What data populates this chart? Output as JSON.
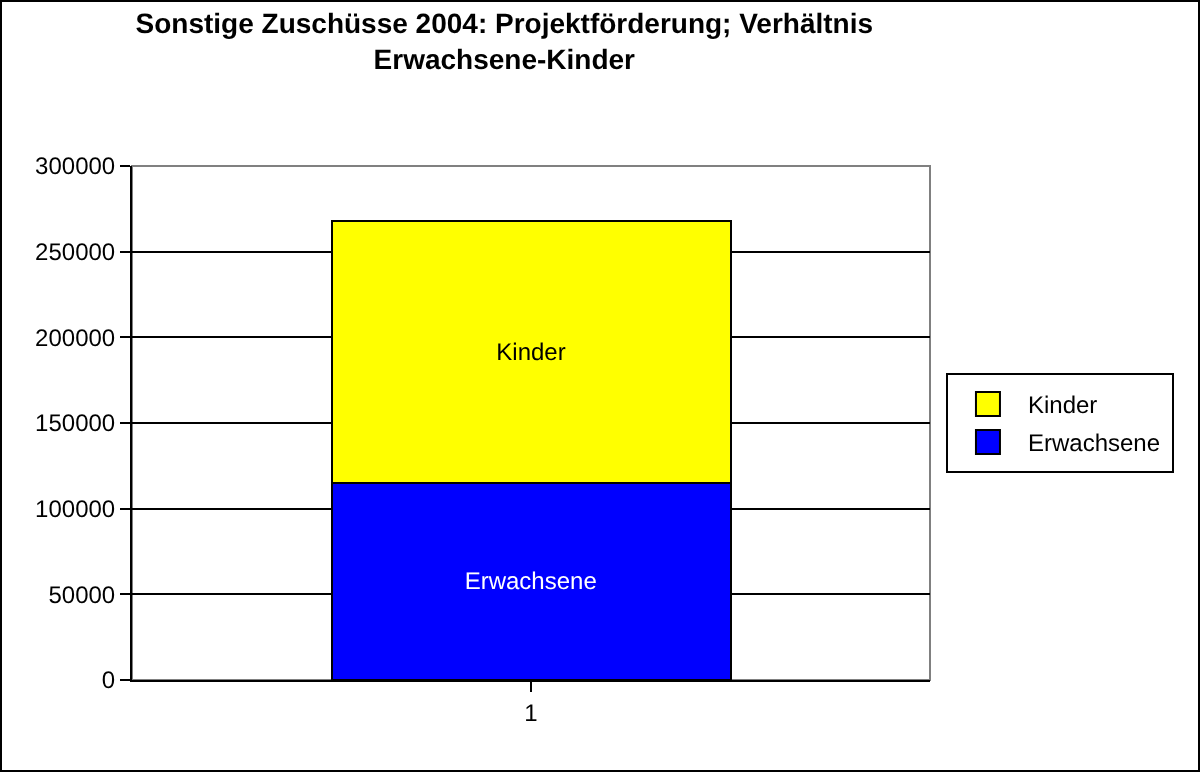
{
  "chart_data": {
    "type": "bar",
    "title": "Sonstige Zuschüsse 2004: Projektförderung; Verhältnis Erwachsene-Kinder",
    "categories": [
      "1"
    ],
    "series": [
      {
        "name": "Erwachsene",
        "color": "#0000ff",
        "values": [
          115000
        ]
      },
      {
        "name": "Kinder",
        "color": "#ffff00",
        "values": [
          153000
        ]
      }
    ],
    "stacked": true,
    "ylim": [
      0,
      300000
    ],
    "yticks": [
      0,
      50000,
      100000,
      150000,
      200000,
      250000,
      300000
    ],
    "grid": "y",
    "legend": "right"
  }
}
